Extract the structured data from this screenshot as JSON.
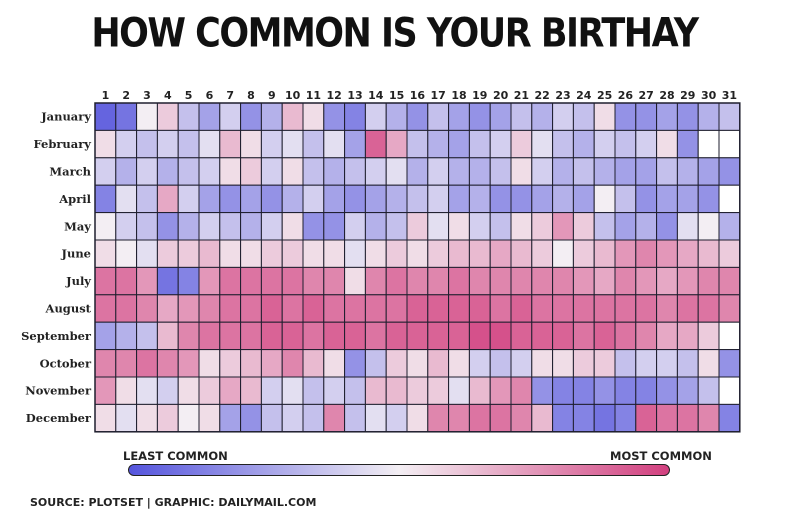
{
  "title": "HOW COMMON IS YOUR BIRTHAY",
  "legend": {
    "least": "LEAST COMMON",
    "most": "MOST COMMON"
  },
  "source": "SOURCE: PLOTSET | GRAPHIC: DAILYMAIL.COM",
  "colors": {
    "least": "#5555dd",
    "mid": "#f3eef3",
    "most": "#d2407f",
    "empty": "#ffffff"
  },
  "chart_data": {
    "type": "heatmap",
    "x": [
      1,
      2,
      3,
      4,
      5,
      6,
      7,
      8,
      9,
      10,
      11,
      12,
      13,
      14,
      15,
      16,
      17,
      18,
      19,
      20,
      21,
      22,
      23,
      24,
      25,
      26,
      27,
      28,
      29,
      30,
      31
    ],
    "y": [
      "January",
      "February",
      "March",
      "April",
      "May",
      "June",
      "July",
      "August",
      "September",
      "October",
      "November",
      "December"
    ],
    "scale": "relative birthday frequency, -1 = least common, 1 = most common",
    "values": [
      [
        -0.9,
        -0.8,
        0,
        0.2,
        -0.3,
        -0.5,
        -0.2,
        -0.6,
        -0.4,
        0.3,
        0.1,
        -0.6,
        -0.7,
        -0.2,
        -0.4,
        -0.6,
        -0.3,
        -0.5,
        -0.6,
        -0.5,
        -0.3,
        -0.4,
        -0.2,
        -0.3,
        0.1,
        -0.6,
        -0.6,
        -0.5,
        -0.6,
        -0.4,
        -0.3
      ],
      [
        0.1,
        -0.2,
        -0.3,
        -0.2,
        -0.3,
        -0.1,
        0.3,
        0.1,
        -0.2,
        -0.1,
        -0.3,
        -0.1,
        -0.5,
        0.8,
        0.4,
        -0.3,
        -0.4,
        -0.5,
        -0.3,
        -0.2,
        0.2,
        -0.1,
        -0.3,
        -0.4,
        -0.2,
        -0.3,
        -0.2,
        0.1,
        -0.6,
        null,
        null
      ],
      [
        -0.2,
        -0.4,
        -0.2,
        -0.4,
        -0.3,
        -0.2,
        0.1,
        0.2,
        -0.2,
        0.1,
        -0.3,
        -0.4,
        -0.3,
        -0.2,
        -0.1,
        -0.4,
        -0.2,
        -0.4,
        -0.4,
        -0.3,
        0.1,
        -0.2,
        -0.4,
        -0.3,
        -0.4,
        -0.5,
        -0.5,
        -0.3,
        -0.4,
        -0.5,
        -0.6
      ],
      [
        -0.7,
        -0.1,
        -0.3,
        0.4,
        -0.2,
        -0.5,
        -0.6,
        -0.5,
        -0.6,
        -0.4,
        -0.2,
        -0.5,
        -0.6,
        -0.5,
        -0.4,
        -0.3,
        -0.2,
        -0.5,
        -0.4,
        -0.6,
        -0.6,
        -0.5,
        -0.4,
        -0.5,
        0,
        -0.3,
        -0.6,
        -0.5,
        -0.5,
        -0.6,
        null
      ],
      [
        0,
        -0.2,
        -0.3,
        -0.6,
        -0.4,
        -0.2,
        -0.3,
        -0.4,
        -0.2,
        0.1,
        -0.6,
        -0.6,
        -0.2,
        -0.4,
        -0.3,
        0.2,
        -0.1,
        0.1,
        -0.2,
        -0.3,
        0.1,
        0.2,
        0.5,
        0.2,
        -0.3,
        -0.5,
        -0.4,
        -0.6,
        -0.1,
        0,
        -0.4
      ],
      [
        0.1,
        0,
        -0.1,
        0.2,
        0.2,
        0.3,
        0.1,
        0.1,
        0.2,
        0.2,
        0.1,
        0.1,
        -0.1,
        0.1,
        0.2,
        0.1,
        0.2,
        0.3,
        0.3,
        0.4,
        0.3,
        0.2,
        0,
        0.2,
        0.3,
        0.5,
        0.6,
        0.5,
        0.4,
        0.3,
        0.2
      ],
      [
        0.7,
        0.7,
        0.5,
        -0.8,
        -0.7,
        0.5,
        0.7,
        0.7,
        0.7,
        0.7,
        0.6,
        0.6,
        0.1,
        0.6,
        0.7,
        0.6,
        0.6,
        0.7,
        0.6,
        0.6,
        0.6,
        0.6,
        0.6,
        0.5,
        0.4,
        0.6,
        0.5,
        0.4,
        0.5,
        0.6,
        0.6
      ],
      [
        0.7,
        0.7,
        0.6,
        0.4,
        0.5,
        0.6,
        0.7,
        0.7,
        0.8,
        0.7,
        0.8,
        0.7,
        0.7,
        0.7,
        0.7,
        0.8,
        0.8,
        0.8,
        0.8,
        0.7,
        0.8,
        0.7,
        0.7,
        0.7,
        0.7,
        0.7,
        0.7,
        0.6,
        0.7,
        0.7,
        0.6
      ],
      [
        -0.5,
        -0.4,
        -0.3,
        0.3,
        0.6,
        0.7,
        0.7,
        0.7,
        0.8,
        0.8,
        0.7,
        0.8,
        0.8,
        0.7,
        0.8,
        0.8,
        0.8,
        0.8,
        0.9,
        0.9,
        0.8,
        0.8,
        0.8,
        0.7,
        0.8,
        0.7,
        0.6,
        0.4,
        0.4,
        0.2,
        null
      ],
      [
        0.6,
        0.6,
        0.7,
        0.6,
        0.5,
        0.1,
        0.2,
        0.3,
        0.4,
        0.6,
        0.3,
        0.1,
        -0.6,
        -0.3,
        0.2,
        0.1,
        0.3,
        0.1,
        -0.2,
        -0.3,
        -0.2,
        0.1,
        0.1,
        0.2,
        0.2,
        -0.3,
        -0.2,
        -0.2,
        -0.3,
        0.1,
        -0.6
      ],
      [
        0.5,
        0.1,
        -0.1,
        -0.2,
        0.1,
        0.2,
        0.4,
        0.3,
        -0.2,
        -0.1,
        -0.3,
        -0.2,
        -0.3,
        0.3,
        0.3,
        0.2,
        0.2,
        -0.1,
        0.3,
        0.5,
        0.6,
        -0.6,
        -0.7,
        -0.7,
        -0.6,
        -0.7,
        -0.7,
        -0.6,
        -0.5,
        -0.3,
        null
      ],
      [
        0.1,
        -0.1,
        0.1,
        0.2,
        0,
        0.1,
        -0.5,
        -0.6,
        -0.3,
        -0.2,
        -0.3,
        0.6,
        -0.3,
        -0.1,
        -0.2,
        0.1,
        0.6,
        0.6,
        0.7,
        0.7,
        0.6,
        0.3,
        -0.7,
        -0.7,
        -0.8,
        -0.7,
        0.8,
        0.7,
        0.7,
        0.6,
        -0.7
      ]
    ]
  }
}
